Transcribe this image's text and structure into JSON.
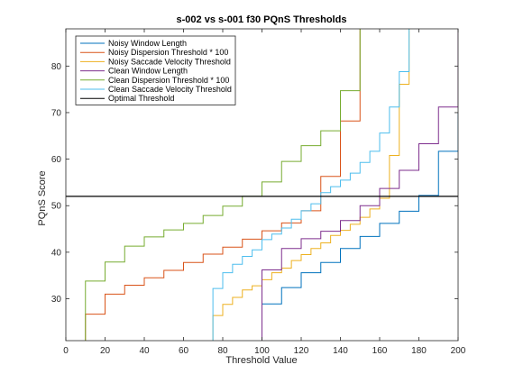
{
  "chart_data": {
    "type": "line",
    "title": "s-002 vs s-001 f30 PQnS Thresholds",
    "xlabel": "Threshold Value",
    "ylabel": "PQnS Score",
    "xlim": [
      0,
      200
    ],
    "ylim": [
      21,
      88
    ],
    "xticks": [
      0,
      20,
      40,
      60,
      80,
      100,
      120,
      140,
      160,
      180,
      200
    ],
    "yticks": [
      30,
      40,
      50,
      60,
      70,
      80
    ],
    "grid": false,
    "legend_position": "top-left",
    "series": [
      {
        "name": "Noisy Window Length",
        "color": "#0072BD",
        "x": [
          100,
          110,
          120,
          130,
          140,
          150,
          160,
          170,
          180,
          190,
          200
        ],
        "y": [
          28.9,
          32.4,
          35.6,
          37.8,
          40.8,
          43.4,
          46.2,
          48.8,
          52.2,
          61.7,
          70.0
        ]
      },
      {
        "name": "Noisy Dispersion Threshold * 100",
        "color": "#D95319",
        "x": [
          10,
          20,
          30,
          40,
          50,
          60,
          70,
          80,
          90,
          100,
          110,
          120,
          130,
          140,
          150
        ],
        "y": [
          26.7,
          31.0,
          32.9,
          34.5,
          36.1,
          37.8,
          39.6,
          41.1,
          42.8,
          44.6,
          46.3,
          48.9,
          56.3,
          68.2,
          88.0
        ]
      },
      {
        "name": "Noisy Saccade Velocity Threshold",
        "color": "#EDB120",
        "x": [
          75,
          80,
          85,
          90,
          95,
          100,
          105,
          110,
          115,
          120,
          125,
          130,
          135,
          140,
          145,
          150,
          155,
          160,
          165,
          170,
          175
        ],
        "y": [
          26.4,
          28.8,
          30.3,
          31.9,
          32.8,
          34.1,
          35.6,
          36.6,
          38.2,
          39.5,
          40.8,
          42.0,
          43.6,
          44.7,
          46.0,
          47.5,
          49.3,
          51.6,
          60.8,
          76.1,
          88.0
        ]
      },
      {
        "name": "Clean Window Length",
        "color": "#7E2F8E",
        "x": [
          100,
          110,
          120,
          130,
          140,
          150,
          160,
          170,
          180,
          190,
          200
        ],
        "y": [
          36.2,
          40.8,
          42.9,
          44.5,
          46.8,
          50.0,
          53.7,
          57.6,
          63.3,
          71.2,
          88.0
        ]
      },
      {
        "name": "Clean Dispersion Threshold * 100",
        "color": "#77AC30",
        "x": [
          10,
          20,
          30,
          40,
          50,
          60,
          70,
          80,
          90,
          100,
          110,
          120,
          130,
          140,
          150
        ],
        "y": [
          33.8,
          37.9,
          41.3,
          43.3,
          44.8,
          46.2,
          47.9,
          49.9,
          52.0,
          55.1,
          59.5,
          62.9,
          66.1,
          74.7,
          88.0
        ]
      },
      {
        "name": "Clean Saccade Velocity Threshold",
        "color": "#4DBEEE",
        "x": [
          75,
          80,
          85,
          90,
          95,
          100,
          105,
          110,
          115,
          120,
          125,
          130,
          135,
          140,
          145,
          150,
          155,
          160,
          165,
          170,
          175
        ],
        "y": [
          32.2,
          35.6,
          37.4,
          39.1,
          40.5,
          42.7,
          43.9,
          45.2,
          47.1,
          48.9,
          50.4,
          52.8,
          54.1,
          55.5,
          57.0,
          59.3,
          61.7,
          65.6,
          71.2,
          78.8,
          88.0
        ]
      },
      {
        "name": "Optimal Threshold",
        "color": "#000000",
        "x": [
          0,
          200
        ],
        "y": [
          52.0,
          52.0
        ]
      }
    ]
  }
}
